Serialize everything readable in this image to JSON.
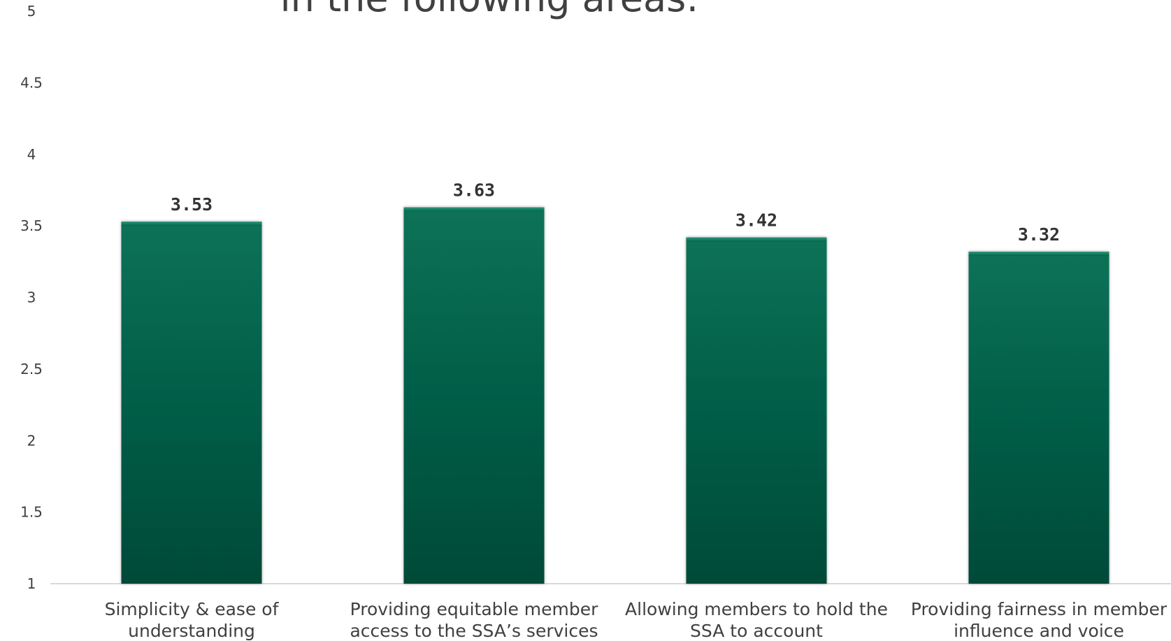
{
  "chart_data": {
    "type": "bar",
    "title": "in the following areas:",
    "categories": [
      [
        "Simplicity & ease of",
        "understanding"
      ],
      [
        "Providing equitable member",
        "access to the SSA’s services"
      ],
      [
        "Allowing members to hold the",
        "SSA to account"
      ],
      [
        "Providing fairness in member",
        "influence and voice"
      ]
    ],
    "values": [
      3.53,
      3.63,
      3.42,
      3.32
    ],
    "data_labels": [
      "3.53",
      "3.63",
      "3.42",
      "3.32"
    ],
    "yticks": [
      "5",
      "4.5",
      "4",
      "3.5",
      "3",
      "2.5",
      "2",
      "1.5",
      "1"
    ],
    "ylim": [
      1,
      5
    ],
    "grid": false,
    "legend": "none",
    "bar_color": "#06654d",
    "axis_color": "#d9d9d9"
  }
}
